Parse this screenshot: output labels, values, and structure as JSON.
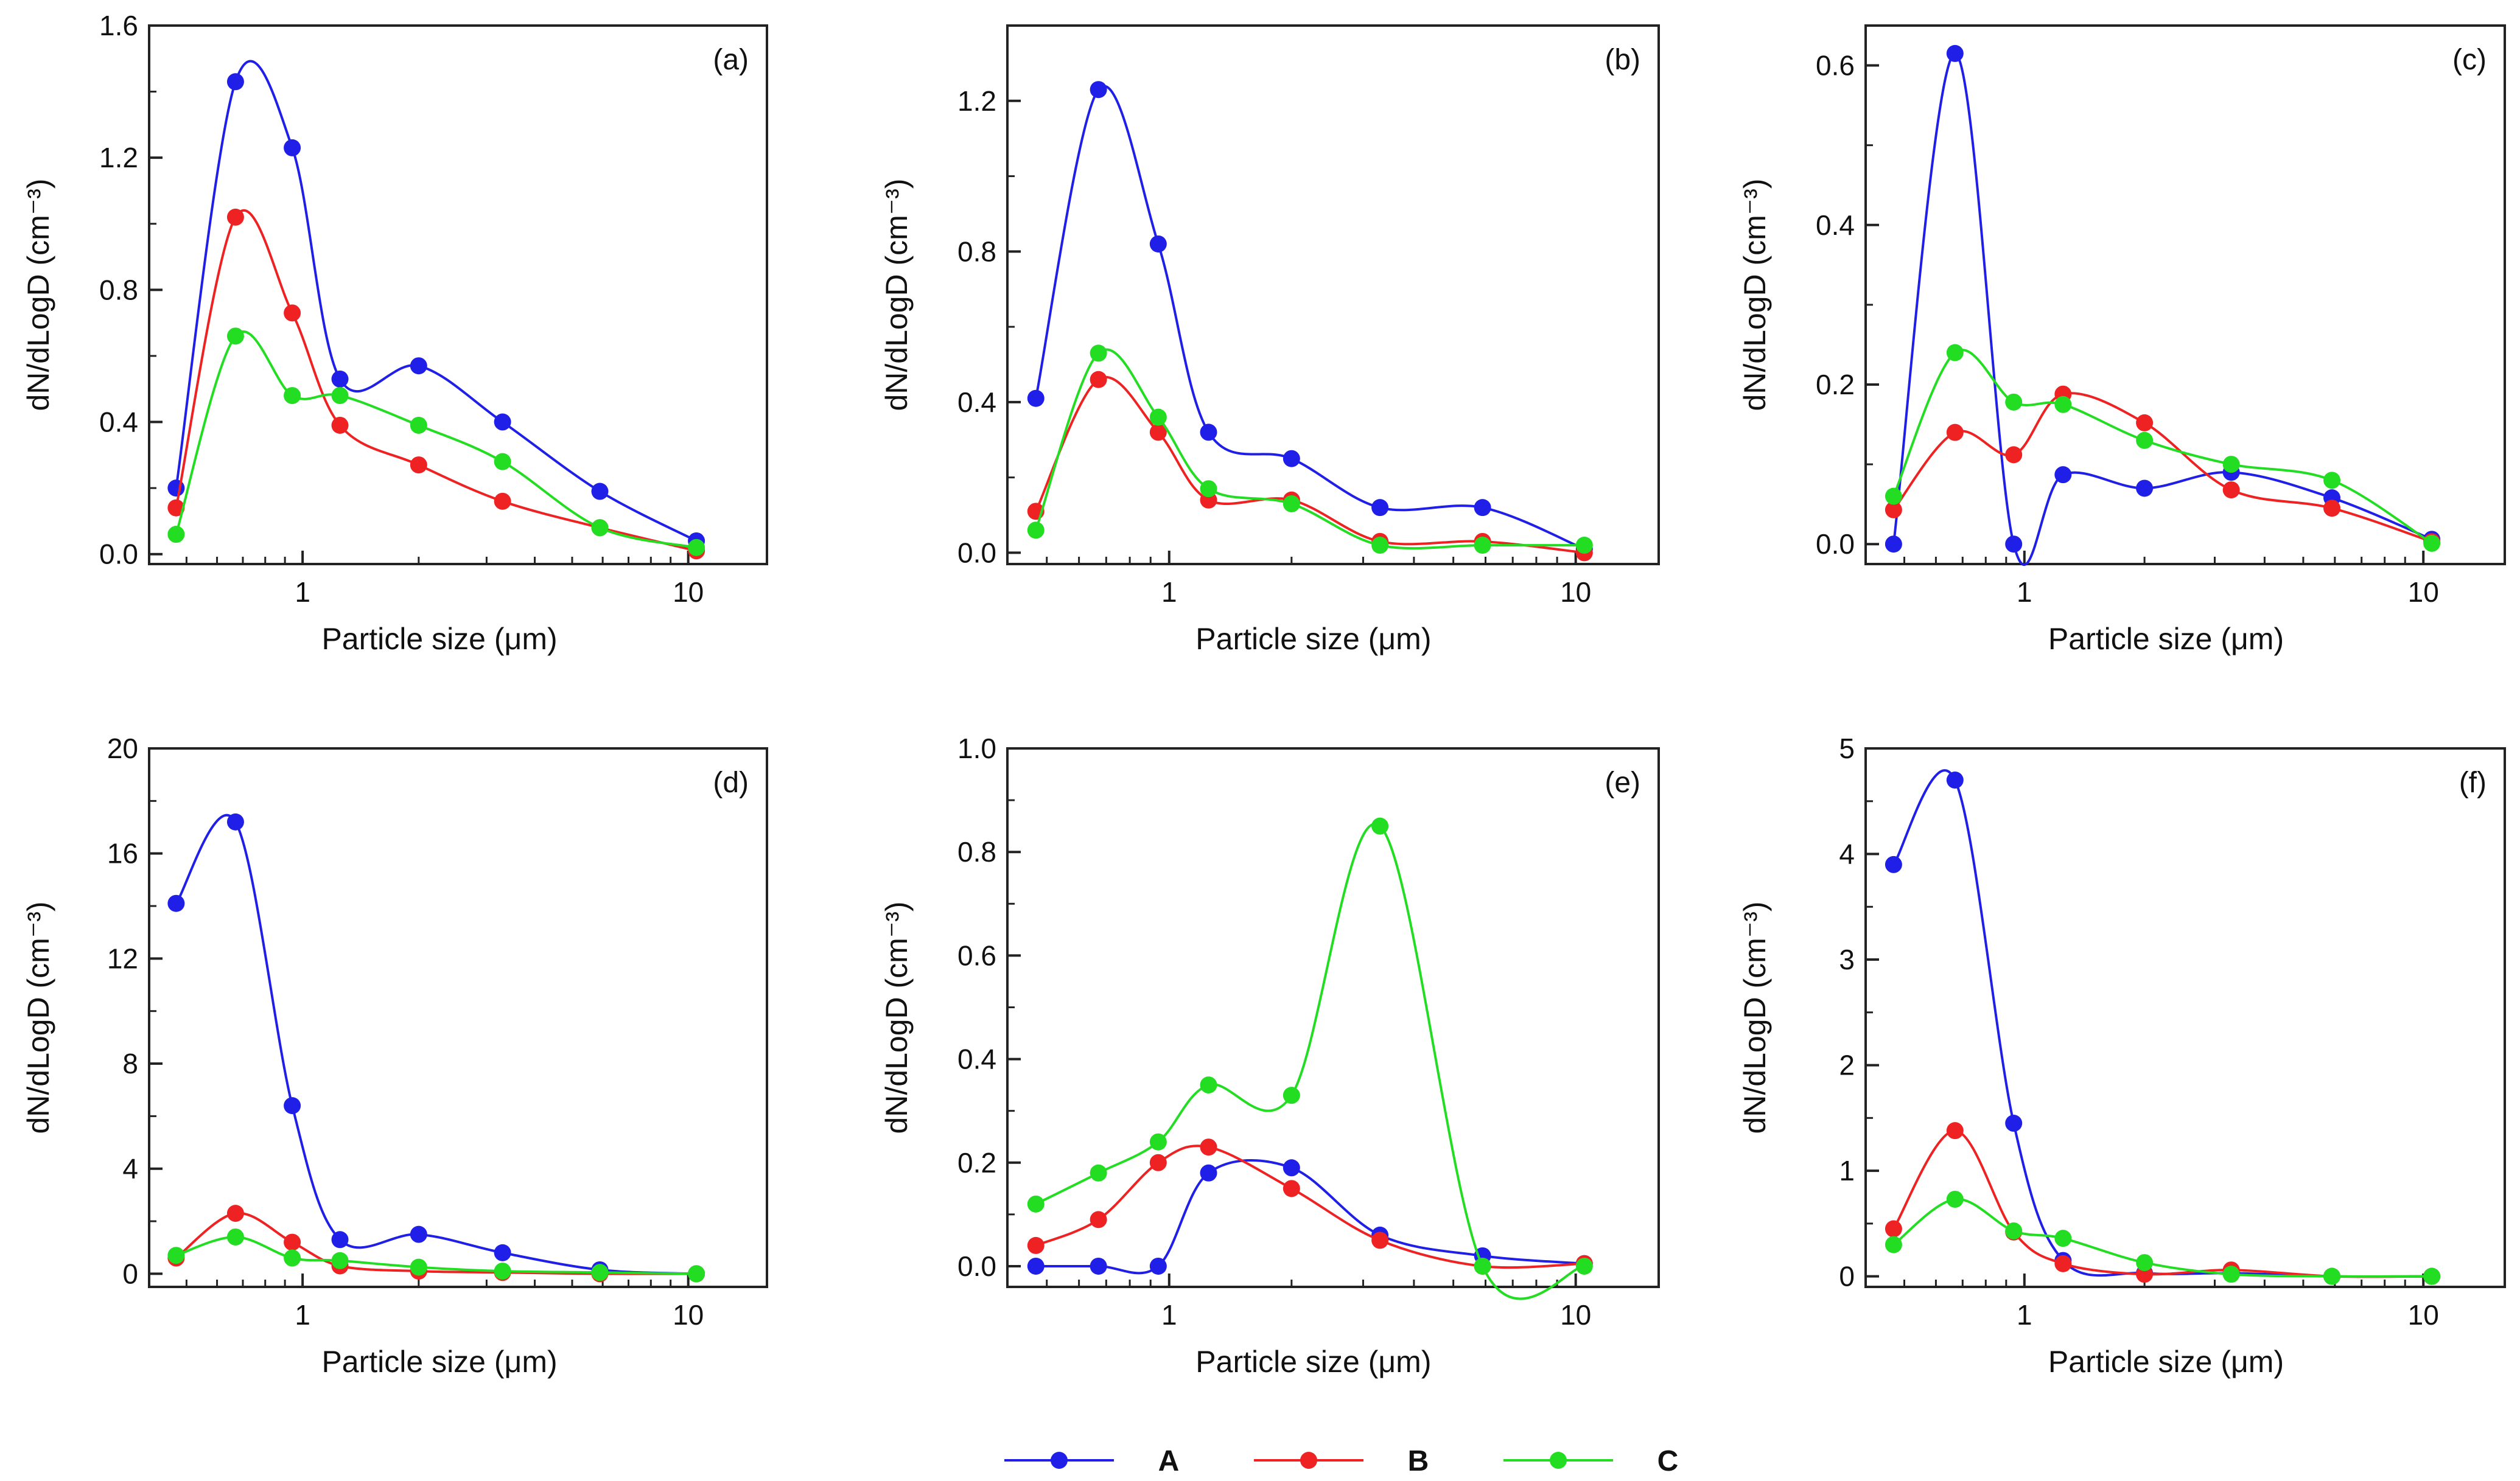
{
  "legend": {
    "items": [
      {
        "label": "A",
        "color": "#1f1fe8"
      },
      {
        "label": "B",
        "color": "#ee2222"
      },
      {
        "label": "C",
        "color": "#22dd22"
      }
    ]
  },
  "chart_data": [
    {
      "type": "line",
      "panel_label": "(a)",
      "xlabel": "Particle size  (μm)",
      "ylabel": "dN/dLogD  (cm⁻³)",
      "xscale": "log",
      "xlim": [
        0.4,
        16
      ],
      "xticks": [
        1,
        10
      ],
      "xtick_labels": [
        "1",
        "10"
      ],
      "ylim": [
        -0.03,
        1.6
      ],
      "yticks": [
        0.0,
        0.4,
        0.8,
        1.2,
        1.6
      ],
      "ytick_labels": [
        "0.0",
        "0.4",
        "0.8",
        "1.2",
        "1.6"
      ],
      "x": [
        0.47,
        0.67,
        0.94,
        1.25,
        2.0,
        3.3,
        5.9,
        10.5
      ],
      "series": [
        {
          "name": "A",
          "values": [
            0.2,
            1.43,
            1.23,
            0.53,
            0.57,
            0.4,
            0.19,
            0.04
          ]
        },
        {
          "name": "B",
          "values": [
            0.14,
            1.02,
            0.73,
            0.39,
            0.27,
            0.16,
            0.08,
            0.01
          ]
        },
        {
          "name": "C",
          "values": [
            0.06,
            0.66,
            0.48,
            0.48,
            0.39,
            0.28,
            0.08,
            0.02
          ]
        }
      ]
    },
    {
      "type": "line",
      "panel_label": "(b)",
      "xlabel": "Particle size  (μm)",
      "ylabel": "dN/dLogD  (cm⁻³)",
      "xscale": "log",
      "xlim": [
        0.4,
        16
      ],
      "xticks": [
        1,
        10
      ],
      "xtick_labels": [
        "1",
        "10"
      ],
      "ylim": [
        -0.03,
        1.4
      ],
      "yticks": [
        0.0,
        0.4,
        0.8,
        1.2
      ],
      "ytick_labels": [
        "0.0",
        "0.4",
        "0.8",
        "1.2"
      ],
      "x": [
        0.47,
        0.67,
        0.94,
        1.25,
        2.0,
        3.3,
        5.9,
        10.5
      ],
      "series": [
        {
          "name": "A",
          "values": [
            0.41,
            1.23,
            0.82,
            0.32,
            0.25,
            0.12,
            0.12,
            0.01
          ]
        },
        {
          "name": "B",
          "values": [
            0.11,
            0.46,
            0.32,
            0.14,
            0.14,
            0.03,
            0.03,
            0.0
          ]
        },
        {
          "name": "C",
          "values": [
            0.06,
            0.53,
            0.36,
            0.17,
            0.13,
            0.02,
            0.02,
            0.02
          ]
        }
      ]
    },
    {
      "type": "line",
      "panel_label": "(c)",
      "xlabel": "Particle size  (μm)",
      "ylabel": "dN/dLogD  (cm⁻³)",
      "xscale": "log",
      "xlim": [
        0.4,
        16
      ],
      "xticks": [
        1,
        10
      ],
      "xtick_labels": [
        "1",
        "10"
      ],
      "ylim": [
        -0.025,
        0.65
      ],
      "yticks": [
        0.0,
        0.2,
        0.4,
        0.6
      ],
      "ytick_labels": [
        "0.0",
        "0.2",
        "0.4",
        "0.6"
      ],
      "x": [
        0.47,
        0.67,
        0.94,
        1.25,
        2.0,
        3.3,
        5.9,
        10.5
      ],
      "series": [
        {
          "name": "A",
          "values": [
            0.0,
            0.615,
            0.0,
            0.087,
            0.07,
            0.09,
            0.058,
            0.006
          ]
        },
        {
          "name": "B",
          "values": [
            0.043,
            0.14,
            0.112,
            0.188,
            0.152,
            0.068,
            0.045,
            0.003
          ]
        },
        {
          "name": "C",
          "values": [
            0.06,
            0.24,
            0.178,
            0.175,
            0.13,
            0.1,
            0.08,
            0.001
          ]
        }
      ]
    },
    {
      "type": "line",
      "panel_label": "(d)",
      "xlabel": "Particle size  (μm)",
      "ylabel": "dN/dLogD  (cm⁻³)",
      "xscale": "log",
      "xlim": [
        0.4,
        16
      ],
      "xticks": [
        1,
        10
      ],
      "xtick_labels": [
        "1",
        "10"
      ],
      "ylim": [
        -0.5,
        20
      ],
      "yticks": [
        0,
        4,
        8,
        12,
        16,
        20
      ],
      "ytick_labels": [
        "0",
        "4",
        "8",
        "12",
        "16",
        "20"
      ],
      "x": [
        0.47,
        0.67,
        0.94,
        1.25,
        2.0,
        3.3,
        5.9,
        10.5
      ],
      "series": [
        {
          "name": "A",
          "values": [
            14.1,
            17.2,
            6.4,
            1.3,
            1.5,
            0.8,
            0.15,
            0.0
          ]
        },
        {
          "name": "B",
          "values": [
            0.6,
            2.3,
            1.2,
            0.3,
            0.1,
            0.05,
            0.0,
            0.0
          ]
        },
        {
          "name": "C",
          "values": [
            0.7,
            1.4,
            0.6,
            0.5,
            0.25,
            0.1,
            0.05,
            0.0
          ]
        }
      ]
    },
    {
      "type": "line",
      "panel_label": "(e)",
      "xlabel": "Particle size  (μm)",
      "ylabel": "dN/dLogD  (cm⁻³)",
      "xscale": "log",
      "xlim": [
        0.4,
        16
      ],
      "xticks": [
        1,
        10
      ],
      "xtick_labels": [
        "1",
        "10"
      ],
      "ylim": [
        -0.04,
        1.0
      ],
      "yticks": [
        0.0,
        0.2,
        0.4,
        0.6,
        0.8,
        1.0
      ],
      "ytick_labels": [
        "0.0",
        "0.2",
        "0.4",
        "0.6",
        "0.8",
        "1.0"
      ],
      "x": [
        0.47,
        0.67,
        0.94,
        1.25,
        2.0,
        3.3,
        5.9,
        10.5
      ],
      "series": [
        {
          "name": "A",
          "values": [
            0.0,
            0.0,
            0.0,
            0.18,
            0.19,
            0.06,
            0.02,
            0.005
          ]
        },
        {
          "name": "B",
          "values": [
            0.04,
            0.09,
            0.2,
            0.23,
            0.15,
            0.05,
            0.0,
            0.005
          ]
        },
        {
          "name": "C",
          "values": [
            0.12,
            0.18,
            0.24,
            0.35,
            0.33,
            0.85,
            0.0,
            0.0
          ]
        }
      ]
    },
    {
      "type": "line",
      "panel_label": "(f)",
      "xlabel": "Particle size  (μm)",
      "ylabel": "dN/dLogD  (cm⁻³)",
      "xscale": "log",
      "xlim": [
        0.4,
        16
      ],
      "xticks": [
        1,
        10
      ],
      "xtick_labels": [
        "1",
        "10"
      ],
      "ylim": [
        -0.1,
        5
      ],
      "yticks": [
        0,
        1,
        2,
        3,
        4,
        5
      ],
      "ytick_labels": [
        "0",
        "1",
        "2",
        "3",
        "4",
        "5"
      ],
      "x": [
        0.47,
        0.67,
        0.94,
        1.25,
        2.0,
        3.3,
        5.9,
        10.5
      ],
      "series": [
        {
          "name": "A",
          "values": [
            3.9,
            4.7,
            1.45,
            0.15,
            0.03,
            0.03,
            0.0,
            0.0
          ]
        },
        {
          "name": "B",
          "values": [
            0.45,
            1.38,
            0.42,
            0.12,
            0.02,
            0.06,
            0.0,
            0.0
          ]
        },
        {
          "name": "C",
          "values": [
            0.3,
            0.73,
            0.43,
            0.36,
            0.13,
            0.02,
            0.0,
            0.0
          ]
        }
      ]
    }
  ]
}
